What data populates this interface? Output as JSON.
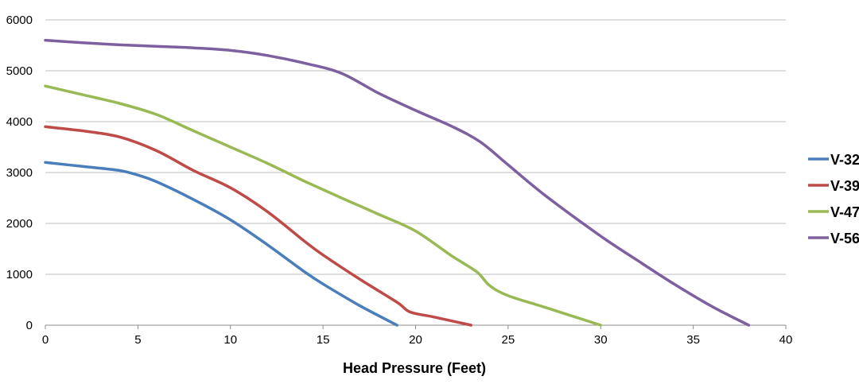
{
  "chart_data": {
    "type": "line",
    "title": "",
    "xlabel": "Head Pressure (Feet)",
    "ylabel": "",
    "xlim": [
      0,
      40
    ],
    "ylim": [
      0,
      6000
    ],
    "xticks": [
      0,
      5,
      10,
      15,
      20,
      25,
      30,
      35,
      40
    ],
    "yticks": [
      0,
      1000,
      2000,
      3000,
      4000,
      5000,
      6000
    ],
    "x_tick_labels": [
      "0",
      "5",
      "10",
      "15",
      "20",
      "25",
      "30",
      "35",
      "40"
    ],
    "y_tick_labels": [
      "0",
      "1000",
      "2000",
      "3000",
      "4000",
      "5000",
      "6000"
    ],
    "grid": "horizontal",
    "legend_position": "right",
    "series": [
      {
        "name": "V-32",
        "color": "#4a7ebb",
        "points": [
          [
            0,
            3200
          ],
          [
            2,
            3120
          ],
          [
            4,
            3040
          ],
          [
            5,
            2950
          ],
          [
            6,
            2820
          ],
          [
            8,
            2470
          ],
          [
            10,
            2070
          ],
          [
            12,
            1580
          ],
          [
            14,
            1050
          ],
          [
            15,
            810
          ],
          [
            17,
            380
          ],
          [
            19,
            0
          ]
        ]
      },
      {
        "name": "V-39",
        "color": "#be4b48",
        "points": [
          [
            0,
            3900
          ],
          [
            2,
            3820
          ],
          [
            4,
            3700
          ],
          [
            6,
            3430
          ],
          [
            8,
            3040
          ],
          [
            10,
            2700
          ],
          [
            12,
            2230
          ],
          [
            14,
            1650
          ],
          [
            15,
            1380
          ],
          [
            17,
            900
          ],
          [
            19,
            450
          ],
          [
            19.7,
            260
          ],
          [
            21,
            160
          ],
          [
            23,
            0
          ]
        ]
      },
      {
        "name": "V-47",
        "color": "#98b954",
        "points": [
          [
            0,
            4700
          ],
          [
            2,
            4530
          ],
          [
            4,
            4360
          ],
          [
            6,
            4140
          ],
          [
            8,
            3820
          ],
          [
            10,
            3500
          ],
          [
            12,
            3180
          ],
          [
            14,
            2830
          ],
          [
            16,
            2500
          ],
          [
            18,
            2180
          ],
          [
            20,
            1850
          ],
          [
            22,
            1350
          ],
          [
            23.3,
            1050
          ],
          [
            24,
            780
          ],
          [
            25,
            580
          ],
          [
            27,
            350
          ],
          [
            30,
            0
          ]
        ]
      },
      {
        "name": "V-56",
        "color": "#7d60a0",
        "points": [
          [
            0,
            5600
          ],
          [
            2,
            5550
          ],
          [
            4,
            5510
          ],
          [
            6,
            5480
          ],
          [
            8,
            5450
          ],
          [
            10,
            5400
          ],
          [
            12,
            5300
          ],
          [
            14,
            5150
          ],
          [
            16,
            4950
          ],
          [
            18,
            4560
          ],
          [
            20,
            4220
          ],
          [
            22,
            3900
          ],
          [
            23.5,
            3600
          ],
          [
            25,
            3150
          ],
          [
            27,
            2550
          ],
          [
            30,
            1750
          ],
          [
            32,
            1270
          ],
          [
            34,
            800
          ],
          [
            36,
            370
          ],
          [
            38,
            0
          ]
        ]
      }
    ]
  }
}
